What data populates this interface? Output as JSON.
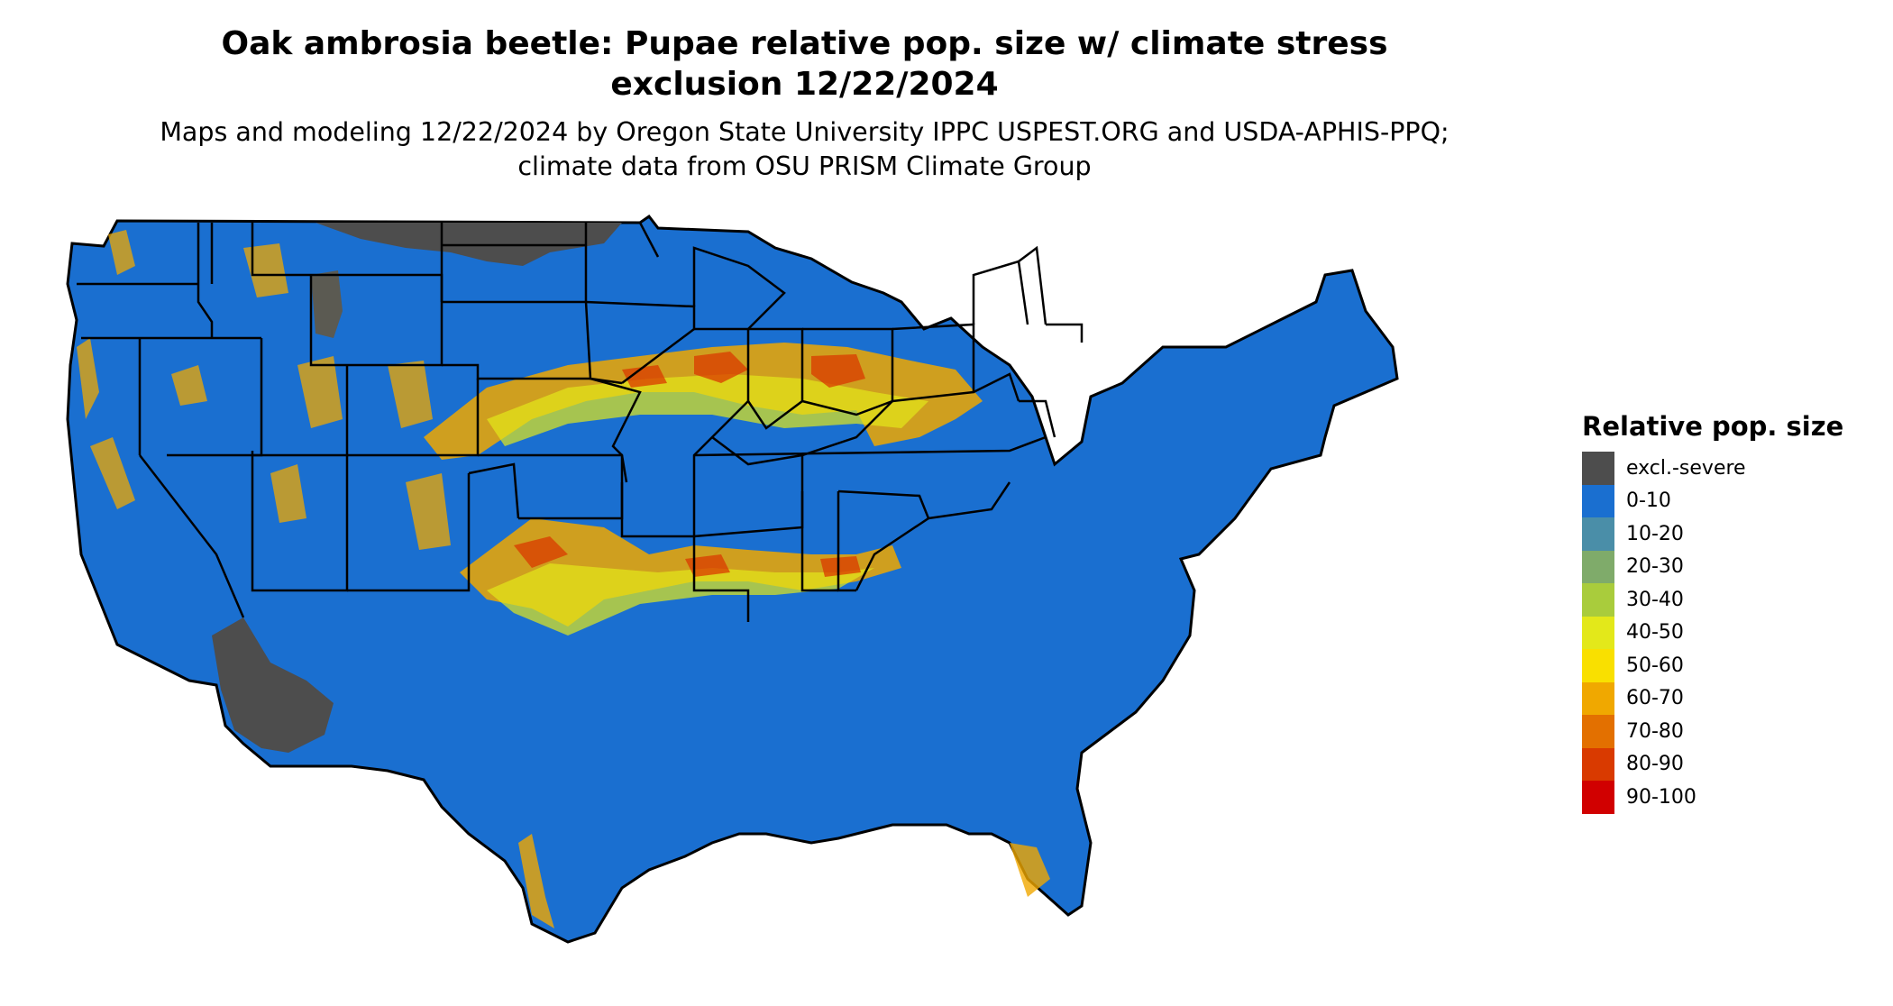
{
  "title": "Oak ambrosia beetle: Pupae relative pop. size w/ climate stress exclusion 12/22/2024",
  "subtitle": "Maps and modeling 12/22/2024 by Oregon State University IPPC USPEST.ORG and USDA-APHIS-PPQ; climate data from OSU PRISM Climate Group",
  "legend": {
    "title": "Relative pop. size",
    "items": [
      {
        "label": "excl.-severe",
        "color": "#4d4d4d"
      },
      {
        "label": "0-10",
        "color": "#1a6fd0"
      },
      {
        "label": "10-20",
        "color": "#4a8ea8"
      },
      {
        "label": "20-30",
        "color": "#7fab6a"
      },
      {
        "label": "30-40",
        "color": "#a9cc3c"
      },
      {
        "label": "40-50",
        "color": "#e3e81a"
      },
      {
        "label": "50-60",
        "color": "#f9e000"
      },
      {
        "label": "60-70",
        "color": "#f0a800"
      },
      {
        "label": "70-80",
        "color": "#e37000"
      },
      {
        "label": "80-90",
        "color": "#d93a00"
      },
      {
        "label": "90-100",
        "color": "#d10000"
      }
    ]
  },
  "map": {
    "region": "contiguous United States",
    "colors": {
      "ocean": "#ffffff",
      "border": "#000000"
    }
  }
}
